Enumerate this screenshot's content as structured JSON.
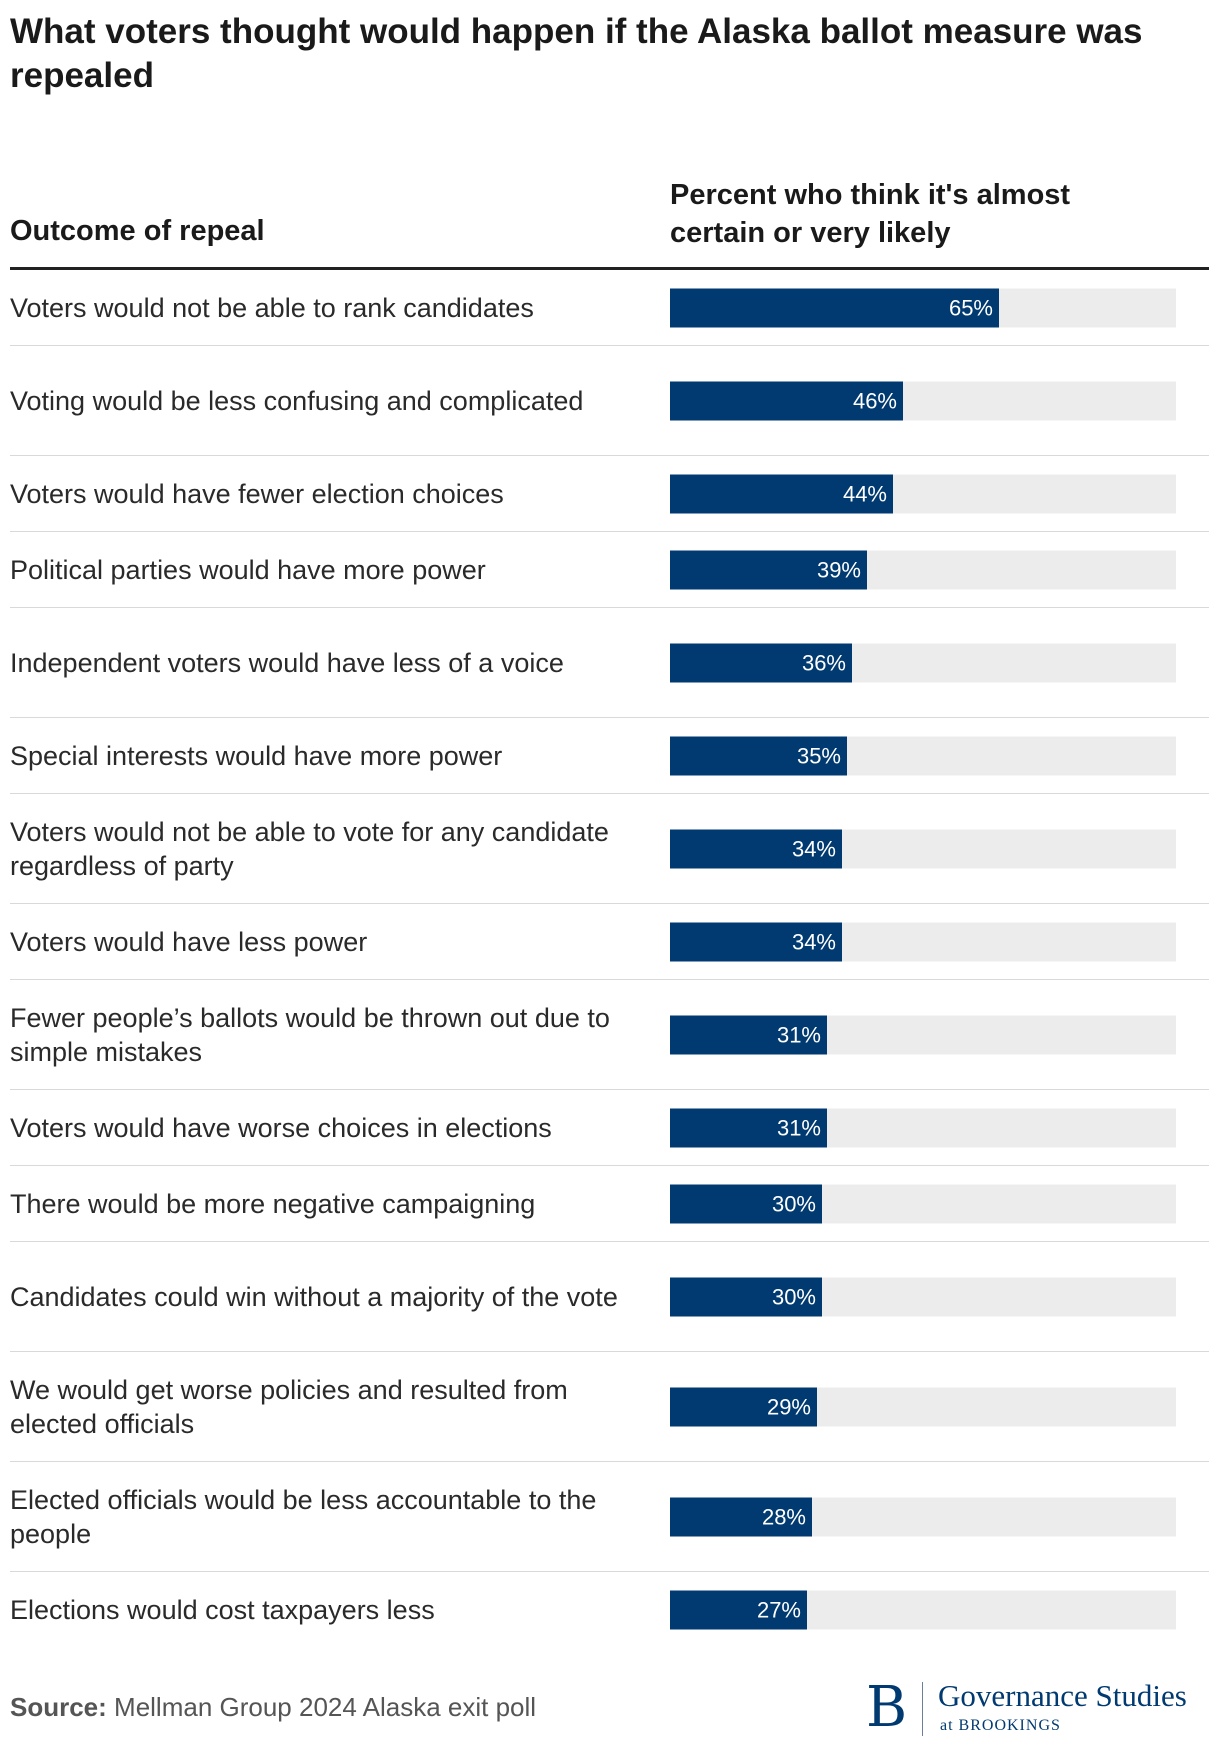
{
  "colors": {
    "bar": "#003a70",
    "track": "#ececec",
    "rule": "#222222",
    "divider": "#d9d9d9"
  },
  "chart_data": {
    "type": "bar",
    "orientation": "horizontal",
    "title": "What voters thought would happen if the Alaska ballot measure was repealed",
    "category_header": "Outcome of repeal",
    "value_header": "Percent who think it's almost certain or very likely",
    "xlim": [
      0,
      100
    ],
    "unit": "%",
    "categories": [
      "Voters would not be able to rank candidates",
      "Voting would be less confusing and complicated",
      "Voters would have fewer election choices",
      "Political parties would have more power",
      "Independent voters would have less of a voice",
      "Special interests would have more power",
      "Voters would not be able to vote for any candidate regardless of party",
      "Voters would have less power",
      "Fewer people’s ballots would be thrown out due to simple mistakes",
      "Voters would have worse choices in elections",
      "There would be more negative campaigning",
      "Candidates could win without a majority of the vote",
      "We would get worse policies and resulted from elected officials",
      "Elected officials would be less accountable to the people",
      "Elections would cost taxpayers less"
    ],
    "values": [
      65,
      46,
      44,
      39,
      36,
      35,
      34,
      34,
      31,
      31,
      30,
      30,
      29,
      28,
      27
    ],
    "value_labels": [
      "65%",
      "46%",
      "44%",
      "39%",
      "36%",
      "35%",
      "34%",
      "34%",
      "31%",
      "31%",
      "30%",
      "30%",
      "29%",
      "28%",
      "27%"
    ]
  },
  "source": {
    "label": "Source:",
    "text": " Mellman Group 2024 Alaska exit poll"
  },
  "logo": {
    "mark": "B",
    "name": "Governance Studies",
    "sub": "at BROOKINGS"
  }
}
